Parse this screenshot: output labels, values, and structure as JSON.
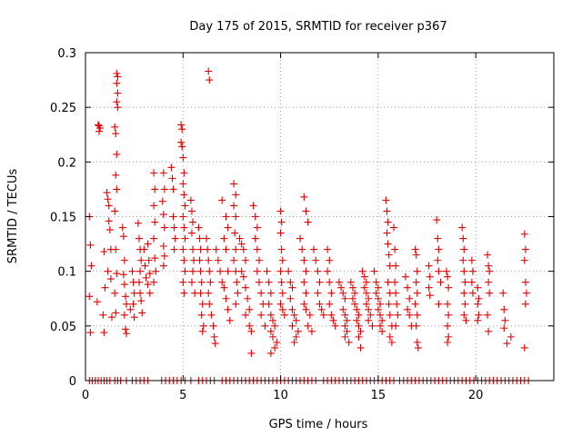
{
  "chart_data": {
    "type": "scatter",
    "title": "Day 175 of 2015, SRMTID for receiver p367",
    "xlabel": "GPS time / hours",
    "ylabel": "SRMTID / TECUs",
    "xlim": [
      0,
      24
    ],
    "ylim": [
      0,
      0.3
    ],
    "xticks": [
      0,
      5,
      10,
      15,
      20
    ],
    "yticks": [
      0,
      0.05,
      0.1,
      0.15,
      0.2,
      0.25,
      0.3
    ],
    "ytick_labels": [
      "0",
      "0.05",
      "0.1",
      "0.15",
      "0.2",
      "0.25",
      "0.3"
    ],
    "grid": true,
    "marker": "+",
    "color": "#e00000",
    "points": [
      [
        0.2,
        0.15
      ],
      [
        0.25,
        0.124
      ],
      [
        0.3,
        0.105
      ],
      [
        0.2,
        0.077
      ],
      [
        0.25,
        0.044
      ],
      [
        0.65,
        0.234
      ],
      [
        0.7,
        0.233
      ],
      [
        0.75,
        0.231
      ],
      [
        0.7,
        0.228
      ],
      [
        0.6,
        0.072
      ],
      [
        0.9,
        0.06
      ],
      [
        0.95,
        0.044
      ],
      [
        1.0,
        0.085
      ],
      [
        0.95,
        0.118
      ],
      [
        1.1,
        0.172
      ],
      [
        1.15,
        0.166
      ],
      [
        1.2,
        0.16
      ],
      [
        1.2,
        0.146
      ],
      [
        1.25,
        0.138
      ],
      [
        1.3,
        0.12
      ],
      [
        1.15,
        0.1
      ],
      [
        1.3,
        0.093
      ],
      [
        1.35,
        0.058
      ],
      [
        1.6,
        0.281
      ],
      [
        1.65,
        0.278
      ],
      [
        1.6,
        0.272
      ],
      [
        1.65,
        0.263
      ],
      [
        1.6,
        0.255
      ],
      [
        1.65,
        0.25
      ],
      [
        1.5,
        0.232
      ],
      [
        1.55,
        0.226
      ],
      [
        1.6,
        0.207
      ],
      [
        1.55,
        0.188
      ],
      [
        1.6,
        0.175
      ],
      [
        1.5,
        0.155
      ],
      [
        1.55,
        0.12
      ],
      [
        1.6,
        0.098
      ],
      [
        1.5,
        0.08
      ],
      [
        1.55,
        0.062
      ],
      [
        1.9,
        0.14
      ],
      [
        1.95,
        0.132
      ],
      [
        2.0,
        0.11
      ],
      [
        1.95,
        0.097
      ],
      [
        2.0,
        0.088
      ],
      [
        2.05,
        0.077
      ],
      [
        2.1,
        0.07
      ],
      [
        2.0,
        0.06
      ],
      [
        2.05,
        0.047
      ],
      [
        2.1,
        0.043
      ],
      [
        2.4,
        0.1
      ],
      [
        2.45,
        0.09
      ],
      [
        2.5,
        0.08
      ],
      [
        2.45,
        0.07
      ],
      [
        2.5,
        0.058
      ],
      [
        2.3,
        0.065
      ],
      [
        2.7,
        0.144
      ],
      [
        2.75,
        0.13
      ],
      [
        2.8,
        0.12
      ],
      [
        2.85,
        0.11
      ],
      [
        2.8,
        0.1
      ],
      [
        2.75,
        0.09
      ],
      [
        2.8,
        0.08
      ],
      [
        2.85,
        0.073
      ],
      [
        2.9,
        0.062
      ],
      [
        3.0,
        0.12
      ],
      [
        3.05,
        0.105
      ],
      [
        3.1,
        0.094
      ],
      [
        3.2,
        0.125
      ],
      [
        3.25,
        0.11
      ],
      [
        3.3,
        0.098
      ],
      [
        3.2,
        0.088
      ],
      [
        3.3,
        0.08
      ],
      [
        3.5,
        0.19
      ],
      [
        3.55,
        0.175
      ],
      [
        3.5,
        0.16
      ],
      [
        3.55,
        0.145
      ],
      [
        3.5,
        0.13
      ],
      [
        3.55,
        0.112
      ],
      [
        3.6,
        0.1
      ],
      [
        3.5,
        0.09
      ],
      [
        4.0,
        0.19
      ],
      [
        4.05,
        0.175
      ],
      [
        3.95,
        0.164
      ],
      [
        4.0,
        0.152
      ],
      [
        4.05,
        0.14
      ],
      [
        4.0,
        0.123
      ],
      [
        4.05,
        0.114
      ],
      [
        4.0,
        0.105
      ],
      [
        4.4,
        0.195
      ],
      [
        4.45,
        0.185
      ],
      [
        4.5,
        0.175
      ],
      [
        4.5,
        0.15
      ],
      [
        4.55,
        0.14
      ],
      [
        4.6,
        0.13
      ],
      [
        4.55,
        0.12
      ],
      [
        4.9,
        0.234
      ],
      [
        4.95,
        0.23
      ],
      [
        4.9,
        0.218
      ],
      [
        4.95,
        0.214
      ],
      [
        5.0,
        0.204
      ],
      [
        5.05,
        0.19
      ],
      [
        5.0,
        0.18
      ],
      [
        5.05,
        0.17
      ],
      [
        5.1,
        0.16
      ],
      [
        5.0,
        0.15
      ],
      [
        5.05,
        0.14
      ],
      [
        5.1,
        0.13
      ],
      [
        5.0,
        0.12
      ],
      [
        5.05,
        0.11
      ],
      [
        5.1,
        0.1
      ],
      [
        5.0,
        0.09
      ],
      [
        5.05,
        0.08
      ],
      [
        5.4,
        0.165
      ],
      [
        5.45,
        0.155
      ],
      [
        5.5,
        0.145
      ],
      [
        5.45,
        0.135
      ],
      [
        5.5,
        0.12
      ],
      [
        5.55,
        0.11
      ],
      [
        5.5,
        0.1
      ],
      [
        5.45,
        0.09
      ],
      [
        5.6,
        0.08
      ],
      [
        5.8,
        0.14
      ],
      [
        5.85,
        0.13
      ],
      [
        5.9,
        0.12
      ],
      [
        5.85,
        0.11
      ],
      [
        5.9,
        0.1
      ],
      [
        5.95,
        0.09
      ],
      [
        5.9,
        0.08
      ],
      [
        6.0,
        0.07
      ],
      [
        5.95,
        0.06
      ],
      [
        6.05,
        0.05
      ],
      [
        6.0,
        0.045
      ],
      [
        6.3,
        0.283
      ],
      [
        6.35,
        0.275
      ],
      [
        6.2,
        0.13
      ],
      [
        6.25,
        0.12
      ],
      [
        6.3,
        0.11
      ],
      [
        6.35,
        0.1
      ],
      [
        6.4,
        0.09
      ],
      [
        6.3,
        0.08
      ],
      [
        6.35,
        0.07
      ],
      [
        6.45,
        0.06
      ],
      [
        6.55,
        0.05
      ],
      [
        6.6,
        0.04
      ],
      [
        6.65,
        0.034
      ],
      [
        6.7,
        0.12
      ],
      [
        6.8,
        0.11
      ],
      [
        6.9,
        0.1
      ],
      [
        7.0,
        0.09
      ],
      [
        7.0,
        0.165
      ],
      [
        7.2,
        0.15
      ],
      [
        7.3,
        0.14
      ],
      [
        7.1,
        0.13
      ],
      [
        7.2,
        0.12
      ],
      [
        7.3,
        0.1
      ],
      [
        7.1,
        0.085
      ],
      [
        7.2,
        0.075
      ],
      [
        7.3,
        0.065
      ],
      [
        7.4,
        0.055
      ],
      [
        7.6,
        0.18
      ],
      [
        7.7,
        0.17
      ],
      [
        7.6,
        0.16
      ],
      [
        7.7,
        0.15
      ],
      [
        7.65,
        0.135
      ],
      [
        7.7,
        0.12
      ],
      [
        7.6,
        0.11
      ],
      [
        7.7,
        0.1
      ],
      [
        7.75,
        0.09
      ],
      [
        7.8,
        0.08
      ],
      [
        7.7,
        0.07
      ],
      [
        7.9,
        0.13
      ],
      [
        8.0,
        0.125
      ],
      [
        8.1,
        0.12
      ],
      [
        8.2,
        0.11
      ],
      [
        8.0,
        0.1
      ],
      [
        8.1,
        0.095
      ],
      [
        8.2,
        0.085
      ],
      [
        8.3,
        0.075
      ],
      [
        8.4,
        0.065
      ],
      [
        8.2,
        0.06
      ],
      [
        8.4,
        0.05
      ],
      [
        8.5,
        0.045
      ],
      [
        8.5,
        0.025
      ],
      [
        8.6,
        0.16
      ],
      [
        8.7,
        0.15
      ],
      [
        8.8,
        0.14
      ],
      [
        8.7,
        0.13
      ],
      [
        8.8,
        0.12
      ],
      [
        8.9,
        0.11
      ],
      [
        8.8,
        0.1
      ],
      [
        8.9,
        0.09
      ],
      [
        9.0,
        0.08
      ],
      [
        9.1,
        0.07
      ],
      [
        9.0,
        0.06
      ],
      [
        9.2,
        0.05
      ],
      [
        9.3,
        0.1
      ],
      [
        9.4,
        0.09
      ],
      [
        9.5,
        0.08
      ],
      [
        9.4,
        0.07
      ],
      [
        9.5,
        0.06
      ],
      [
        9.6,
        0.055
      ],
      [
        9.7,
        0.05
      ],
      [
        9.5,
        0.045
      ],
      [
        9.6,
        0.04
      ],
      [
        9.8,
        0.035
      ],
      [
        9.7,
        0.03
      ],
      [
        9.5,
        0.025
      ],
      [
        10.0,
        0.155
      ],
      [
        10.05,
        0.145
      ],
      [
        10.0,
        0.135
      ],
      [
        10.05,
        0.12
      ],
      [
        10.1,
        0.11
      ],
      [
        10.0,
        0.1
      ],
      [
        10.05,
        0.09
      ],
      [
        10.1,
        0.08
      ],
      [
        10.0,
        0.07
      ],
      [
        10.1,
        0.065
      ],
      [
        10.2,
        0.06
      ],
      [
        10.4,
        0.1
      ],
      [
        10.5,
        0.09
      ],
      [
        10.6,
        0.085
      ],
      [
        10.5,
        0.075
      ],
      [
        10.6,
        0.065
      ],
      [
        10.7,
        0.06
      ],
      [
        10.8,
        0.055
      ],
      [
        10.6,
        0.05
      ],
      [
        10.9,
        0.045
      ],
      [
        10.8,
        0.04
      ],
      [
        10.7,
        0.035
      ],
      [
        11.0,
        0.13
      ],
      [
        11.1,
        0.12
      ],
      [
        11.2,
        0.11
      ],
      [
        11.3,
        0.1
      ],
      [
        11.2,
        0.09
      ],
      [
        11.3,
        0.08
      ],
      [
        11.2,
        0.07
      ],
      [
        11.3,
        0.065
      ],
      [
        11.5,
        0.06
      ],
      [
        11.4,
        0.05
      ],
      [
        11.6,
        0.045
      ],
      [
        11.2,
        0.168
      ],
      [
        11.3,
        0.155
      ],
      [
        11.4,
        0.145
      ],
      [
        11.7,
        0.12
      ],
      [
        11.8,
        0.11
      ],
      [
        11.9,
        0.1
      ],
      [
        12.0,
        0.09
      ],
      [
        11.9,
        0.08
      ],
      [
        12.0,
        0.07
      ],
      [
        12.1,
        0.065
      ],
      [
        12.2,
        0.06
      ],
      [
        12.4,
        0.12
      ],
      [
        12.5,
        0.11
      ],
      [
        12.4,
        0.1
      ],
      [
        12.5,
        0.09
      ],
      [
        12.6,
        0.08
      ],
      [
        12.5,
        0.07
      ],
      [
        12.6,
        0.06
      ],
      [
        12.7,
        0.055
      ],
      [
        12.8,
        0.05
      ],
      [
        13.0,
        0.09
      ],
      [
        13.1,
        0.085
      ],
      [
        13.2,
        0.08
      ],
      [
        13.3,
        0.075
      ],
      [
        13.2,
        0.065
      ],
      [
        13.3,
        0.06
      ],
      [
        13.4,
        0.055
      ],
      [
        13.3,
        0.05
      ],
      [
        13.4,
        0.045
      ],
      [
        13.3,
        0.04
      ],
      [
        13.5,
        0.035
      ],
      [
        13.6,
        0.09
      ],
      [
        13.7,
        0.085
      ],
      [
        13.8,
        0.08
      ],
      [
        13.7,
        0.075
      ],
      [
        13.8,
        0.07
      ],
      [
        13.9,
        0.065
      ],
      [
        14.0,
        0.06
      ],
      [
        13.9,
        0.055
      ],
      [
        14.0,
        0.05
      ],
      [
        14.1,
        0.045
      ],
      [
        14.0,
        0.04
      ],
      [
        14.1,
        0.03
      ],
      [
        14.2,
        0.1
      ],
      [
        14.3,
        0.095
      ],
      [
        14.4,
        0.09
      ],
      [
        14.3,
        0.085
      ],
      [
        14.4,
        0.08
      ],
      [
        14.5,
        0.075
      ],
      [
        14.4,
        0.07
      ],
      [
        14.5,
        0.065
      ],
      [
        14.6,
        0.06
      ],
      [
        14.5,
        0.055
      ],
      [
        14.7,
        0.05
      ],
      [
        14.8,
        0.1
      ],
      [
        14.9,
        0.09
      ],
      [
        15.0,
        0.085
      ],
      [
        14.9,
        0.08
      ],
      [
        15.0,
        0.075
      ],
      [
        15.1,
        0.07
      ],
      [
        15.0,
        0.065
      ],
      [
        15.1,
        0.06
      ],
      [
        15.2,
        0.055
      ],
      [
        15.1,
        0.05
      ],
      [
        15.2,
        0.045
      ],
      [
        15.4,
        0.165
      ],
      [
        15.45,
        0.155
      ],
      [
        15.5,
        0.145
      ],
      [
        15.45,
        0.135
      ],
      [
        15.5,
        0.125
      ],
      [
        15.55,
        0.115
      ],
      [
        15.6,
        0.105
      ],
      [
        15.5,
        0.09
      ],
      [
        15.6,
        0.08
      ],
      [
        15.55,
        0.07
      ],
      [
        15.6,
        0.06
      ],
      [
        15.7,
        0.05
      ],
      [
        15.6,
        0.04
      ],
      [
        15.7,
        0.035
      ],
      [
        15.8,
        0.14
      ],
      [
        15.85,
        0.12
      ],
      [
        15.9,
        0.105
      ],
      [
        15.85,
        0.09
      ],
      [
        15.9,
        0.08
      ],
      [
        15.95,
        0.07
      ],
      [
        16.0,
        0.06
      ],
      [
        15.9,
        0.05
      ],
      [
        16.4,
        0.095
      ],
      [
        16.5,
        0.085
      ],
      [
        16.6,
        0.075
      ],
      [
        16.5,
        0.065
      ],
      [
        16.6,
        0.06
      ],
      [
        16.7,
        0.05
      ],
      [
        16.9,
        0.12
      ],
      [
        16.95,
        0.115
      ],
      [
        17.0,
        0.1
      ],
      [
        16.95,
        0.09
      ],
      [
        17.0,
        0.08
      ],
      [
        16.9,
        0.07
      ],
      [
        17.0,
        0.06
      ],
      [
        16.95,
        0.05
      ],
      [
        17.0,
        0.035
      ],
      [
        17.05,
        0.03
      ],
      [
        17.6,
        0.105
      ],
      [
        17.65,
        0.095
      ],
      [
        17.6,
        0.085
      ],
      [
        17.65,
        0.078
      ],
      [
        18.0,
        0.147
      ],
      [
        18.05,
        0.13
      ],
      [
        18.1,
        0.12
      ],
      [
        18.05,
        0.11
      ],
      [
        18.1,
        0.1
      ],
      [
        18.2,
        0.09
      ],
      [
        18.1,
        0.07
      ],
      [
        18.5,
        0.1
      ],
      [
        18.55,
        0.095
      ],
      [
        18.6,
        0.085
      ],
      [
        18.55,
        0.07
      ],
      [
        18.6,
        0.06
      ],
      [
        18.55,
        0.05
      ],
      [
        18.6,
        0.04
      ],
      [
        18.55,
        0.035
      ],
      [
        19.3,
        0.14
      ],
      [
        19.35,
        0.13
      ],
      [
        19.4,
        0.12
      ],
      [
        19.35,
        0.11
      ],
      [
        19.4,
        0.1
      ],
      [
        19.45,
        0.09
      ],
      [
        19.4,
        0.08
      ],
      [
        19.45,
        0.07
      ],
      [
        19.4,
        0.06
      ],
      [
        19.5,
        0.055
      ],
      [
        19.8,
        0.11
      ],
      [
        19.85,
        0.1
      ],
      [
        19.8,
        0.09
      ],
      [
        19.85,
        0.08
      ],
      [
        20.1,
        0.085
      ],
      [
        20.15,
        0.075
      ],
      [
        20.1,
        0.07
      ],
      [
        20.15,
        0.06
      ],
      [
        20.1,
        0.055
      ],
      [
        20.6,
        0.115
      ],
      [
        20.65,
        0.105
      ],
      [
        20.7,
        0.1
      ],
      [
        20.65,
        0.09
      ],
      [
        20.7,
        0.08
      ],
      [
        20.6,
        0.06
      ],
      [
        20.65,
        0.045
      ],
      [
        21.4,
        0.08
      ],
      [
        21.45,
        0.065
      ],
      [
        21.5,
        0.055
      ],
      [
        21.45,
        0.048
      ],
      [
        21.8,
        0.04
      ],
      [
        21.6,
        0.034
      ],
      [
        22.5,
        0.134
      ],
      [
        22.55,
        0.12
      ],
      [
        22.5,
        0.11
      ],
      [
        22.55,
        0.09
      ],
      [
        22.6,
        0.08
      ],
      [
        22.55,
        0.07
      ],
      [
        22.5,
        0.03
      ]
    ],
    "zero_points_x": [
      0.2,
      0.35,
      0.5,
      0.65,
      0.8,
      0.95,
      1.1,
      1.25,
      1.5,
      1.65,
      1.8,
      2.1,
      2.4,
      2.6,
      2.8,
      3.0,
      3.2,
      3.9,
      4.1,
      4.3,
      4.5,
      4.7,
      4.9,
      5.1,
      5.4,
      5.8,
      6.0,
      6.2,
      6.4,
      6.6,
      7.0,
      7.2,
      7.4,
      7.6,
      7.8,
      8.0,
      8.2,
      8.4,
      8.6,
      8.8,
      9.0,
      9.2,
      9.4,
      9.6,
      9.8,
      10.0,
      10.2,
      10.4,
      10.6,
      10.8,
      11.0,
      11.2,
      11.4,
      11.6,
      11.8,
      12.2,
      12.4,
      12.6,
      12.8,
      13.0,
      13.2,
      13.4,
      13.6,
      13.8,
      14.0,
      14.2,
      14.4,
      14.6,
      14.8,
      15.0,
      15.2,
      15.4,
      15.6,
      15.8,
      16.1,
      16.3,
      16.5,
      16.7,
      16.9,
      17.1,
      17.3,
      17.5,
      17.7,
      17.9,
      18.1,
      18.3,
      18.5,
      18.7,
      18.9,
      19.1,
      19.3,
      19.5,
      19.7,
      19.9,
      20.1,
      20.3,
      20.5,
      20.7,
      20.9,
      21.1,
      21.3,
      21.5,
      21.7,
      21.9,
      22.1,
      22.3,
      22.5,
      22.7
    ]
  }
}
